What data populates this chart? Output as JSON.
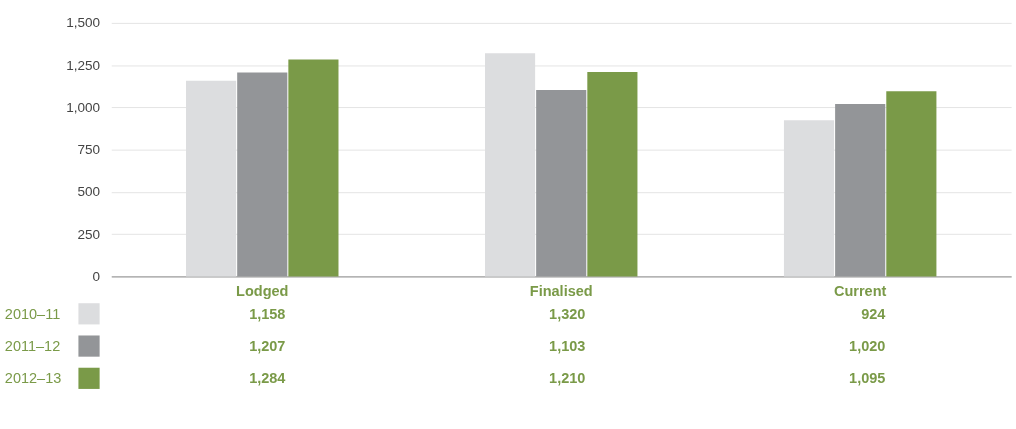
{
  "chart_data": {
    "type": "bar",
    "categories": [
      "Lodged",
      "Finalised",
      "Current"
    ],
    "series": [
      {
        "name": "2010–11",
        "color": "#dcdddf",
        "values": [
          1158,
          1320,
          924
        ],
        "value_labels": [
          "1,158",
          "1,320",
          "924"
        ]
      },
      {
        "name": "2011–12",
        "color": "#939598",
        "values": [
          1207,
          1103,
          1020
        ],
        "value_labels": [
          "1,207",
          "1,103",
          "1,020"
        ]
      },
      {
        "name": "2012–13",
        "color": "#7a9a48",
        "values": [
          1284,
          1210,
          1095
        ],
        "value_labels": [
          "1,284",
          "1,210",
          "1,095"
        ]
      }
    ],
    "ylim": [
      0,
      1500
    ],
    "yticks": [
      0,
      {
        "value": 250,
        "label": "250"
      },
      {
        "value": 500,
        "label": "500"
      },
      {
        "value": 750,
        "label": "750"
      },
      {
        "value": 1000,
        "label": "1,000"
      },
      {
        "value": 1250,
        "label": "1,250"
      },
      {
        "value": 1500,
        "label": "1,500"
      }
    ],
    "grid": "y",
    "legend": "bottom left"
  }
}
